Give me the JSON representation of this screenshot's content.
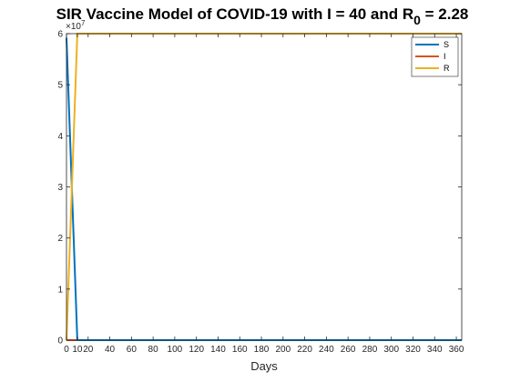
{
  "chart_data": {
    "type": "line",
    "title_main": "SIR Vaccine Model of COVID-19 with I = 40 and R",
    "title_sub": "0",
    "title_tail": " = 2.28",
    "xlabel": "Days",
    "ylabel": "",
    "y_exponent_base": "×10",
    "y_exponent_power": "7",
    "xlim": [
      0,
      365
    ],
    "ylim": [
      0,
      60000000
    ],
    "x_ticks": [
      0,
      10,
      20,
      40,
      60,
      80,
      100,
      120,
      140,
      160,
      180,
      200,
      220,
      240,
      260,
      280,
      300,
      320,
      340,
      360
    ],
    "y_ticks": [
      0,
      10000000,
      20000000,
      30000000,
      40000000,
      50000000,
      60000000
    ],
    "y_tick_labels": [
      "0",
      "1",
      "2",
      "3",
      "4",
      "5",
      "6"
    ],
    "legend_location": "top-right",
    "grid": false,
    "series": [
      {
        "name": "S",
        "color": "#0072BD",
        "x": [
          0,
          10,
          365
        ],
        "y": [
          59200000,
          0,
          0
        ]
      },
      {
        "name": "I",
        "color": "#D95319",
        "x": [
          0,
          365
        ],
        "y": [
          0,
          0
        ]
      },
      {
        "name": "R",
        "color": "#EDB120",
        "x": [
          0,
          10,
          365
        ],
        "y": [
          0,
          60000000,
          60000000
        ]
      }
    ]
  }
}
